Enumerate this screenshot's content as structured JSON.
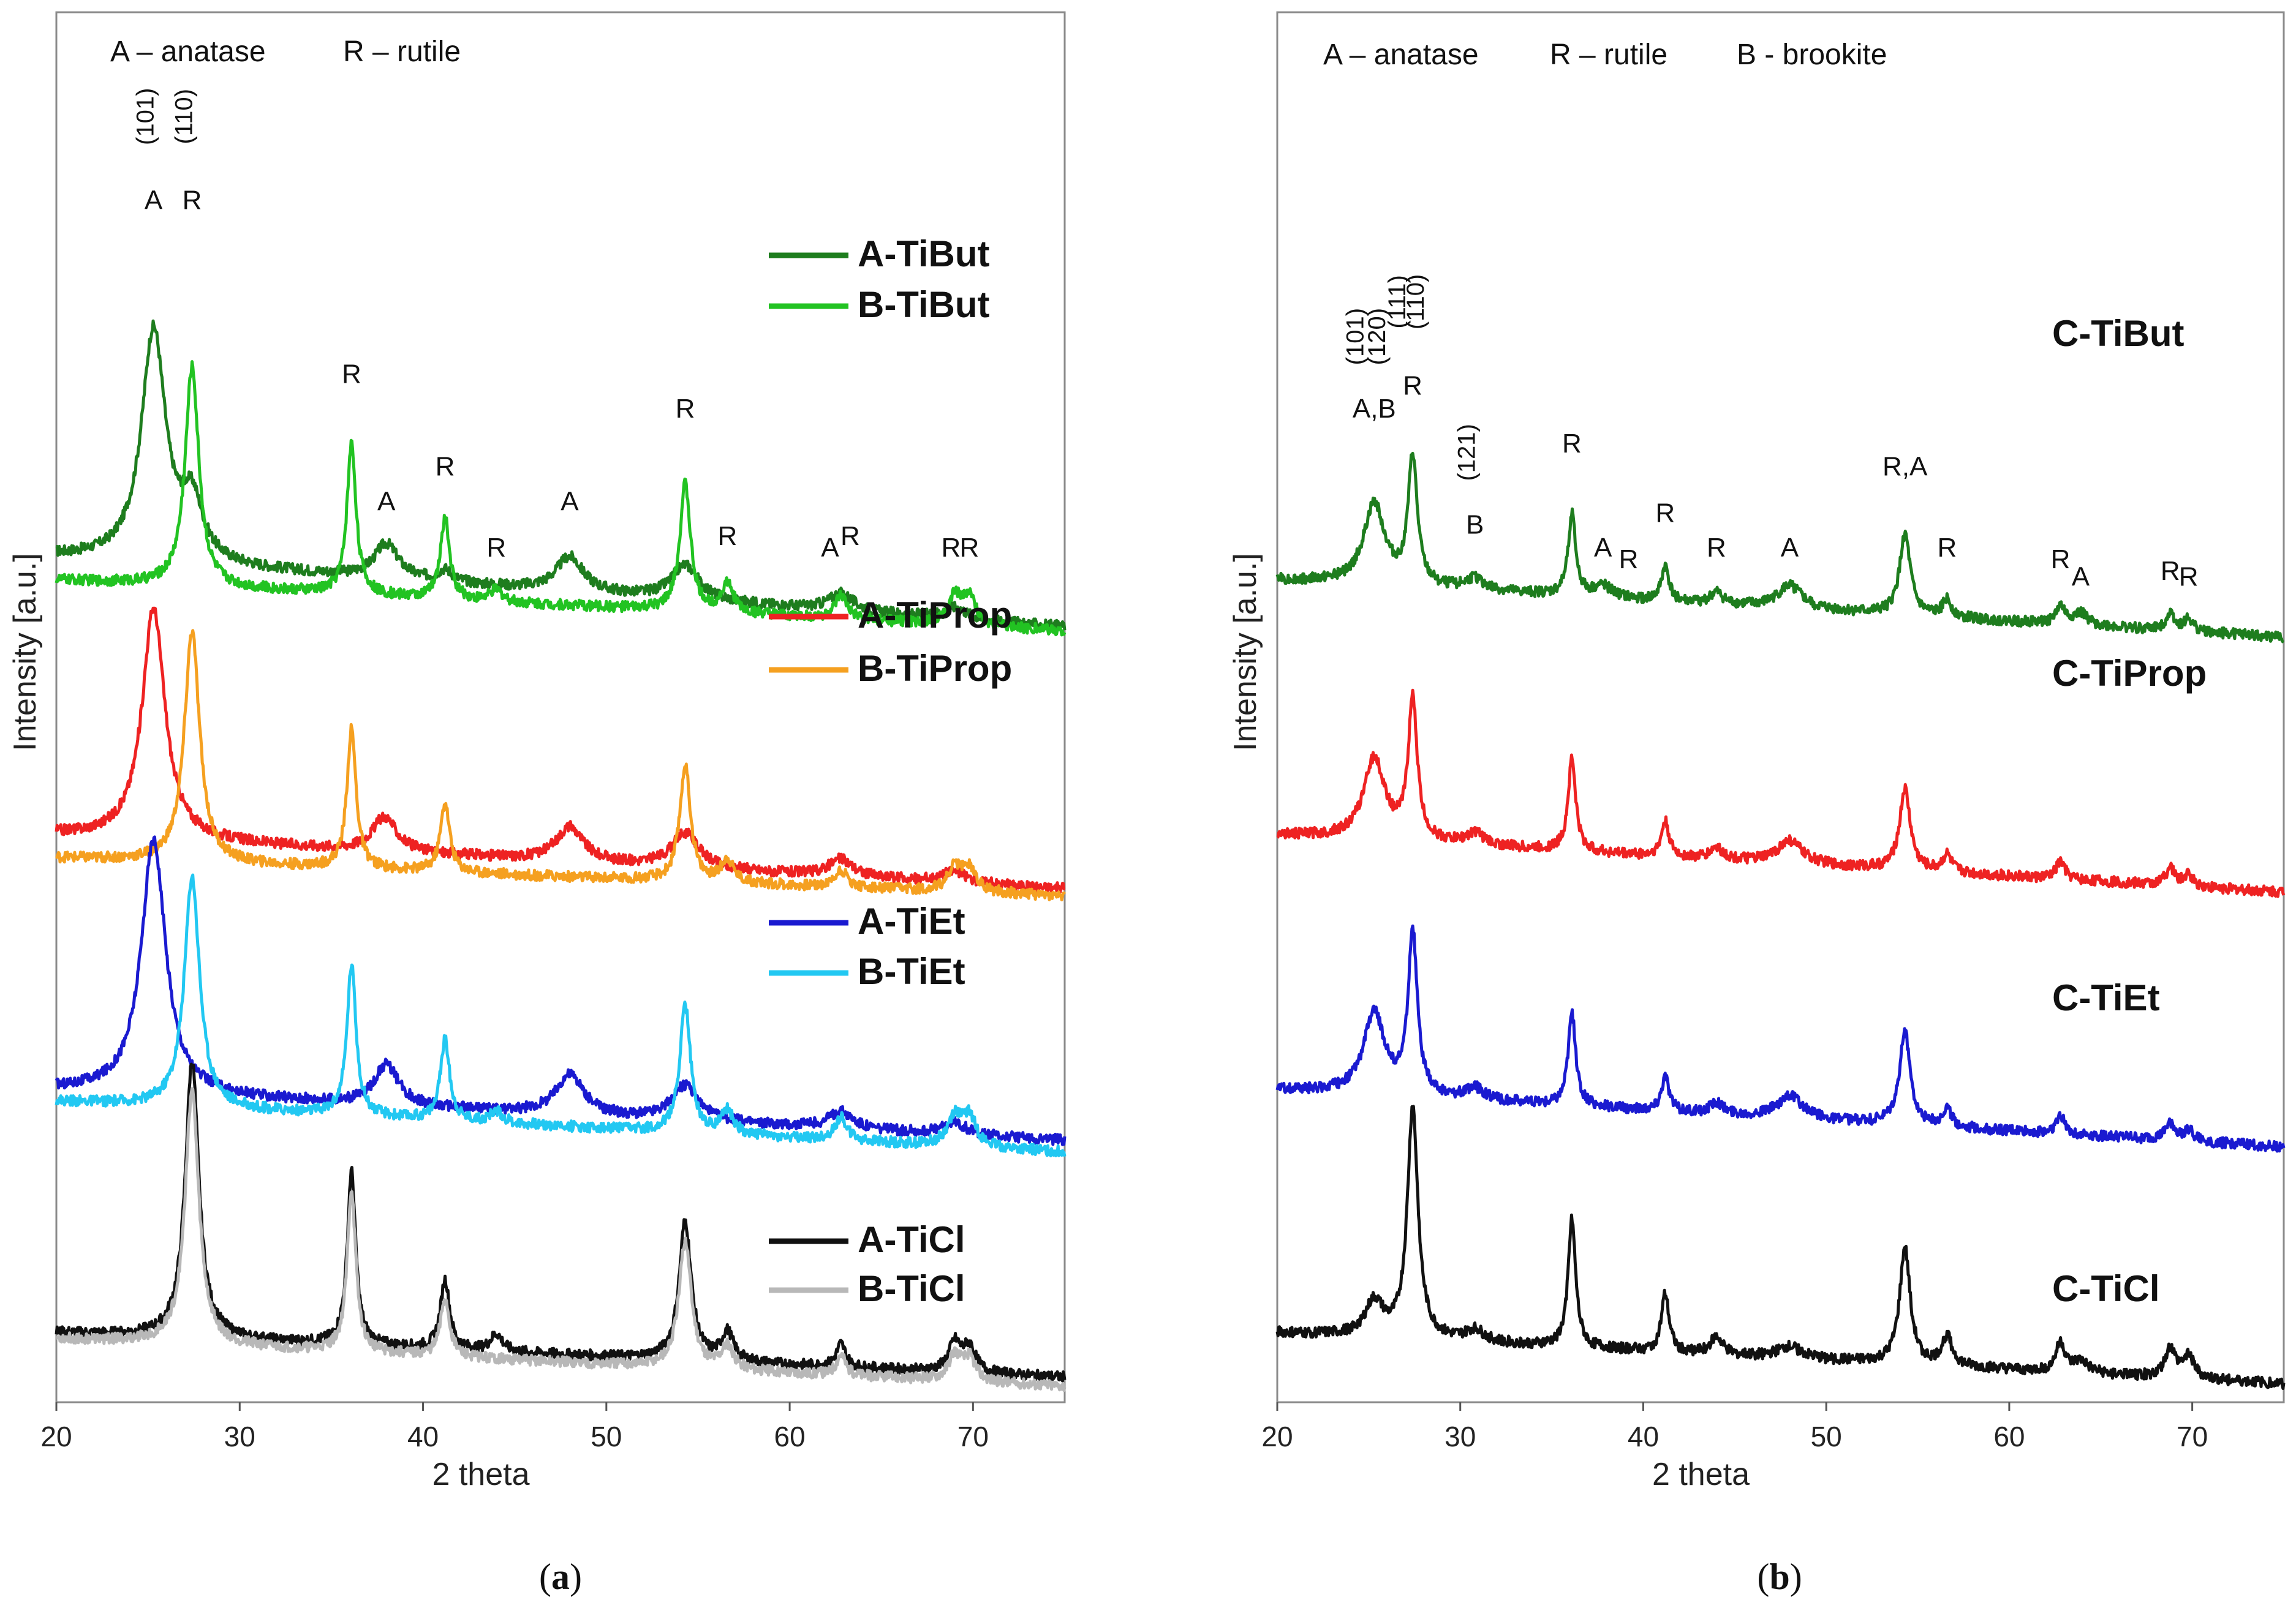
{
  "chart_data": [
    {
      "id": "a",
      "type": "line",
      "caption": "a",
      "xlabel": "2 theta",
      "ylabel": "Intensity [a.u.]",
      "xlim": [
        20,
        75
      ],
      "xticks": [
        20,
        30,
        40,
        50,
        60,
        70
      ],
      "phase_key": [
        "A – anatase",
        "R – rutile"
      ],
      "peak_labels": [
        {
          "text": "A",
          "x": 25.3,
          "y": 103
        },
        {
          "text": "R",
          "x": 27.4,
          "y": 103
        },
        {
          "text": "R",
          "x": 36.1,
          "y": 88
        },
        {
          "text": "A",
          "x": 38.0,
          "y": 77
        },
        {
          "text": "R",
          "x": 41.2,
          "y": 80
        },
        {
          "text": "R",
          "x": 44.0,
          "y": 73
        },
        {
          "text": "A",
          "x": 48.0,
          "y": 77
        },
        {
          "text": "R",
          "x": 54.3,
          "y": 85
        },
        {
          "text": "R",
          "x": 56.6,
          "y": 74
        },
        {
          "text": "A",
          "x": 62.2,
          "y": 73
        },
        {
          "text": "R",
          "x": 63.3,
          "y": 74
        },
        {
          "text": "R",
          "x": 68.8,
          "y": 73
        },
        {
          "text": "R",
          "x": 69.8,
          "y": 73
        }
      ],
      "hkl_labels": [
        {
          "text": "(101)",
          "x": 25.3,
          "y": 111
        },
        {
          "text": "(110)",
          "x": 27.4,
          "y": 111
        }
      ],
      "series": [
        {
          "name": "A-TiBut",
          "color": "#1e7d1e",
          "offset": 65,
          "baseline": 8,
          "slope": 0.11,
          "peaks": [
            [
              25.3,
              20,
              0.8
            ],
            [
              27.4,
              5,
              0.7
            ],
            [
              38.0,
              3,
              0.8
            ],
            [
              41.2,
              1,
              0.5
            ],
            [
              48.0,
              3,
              0.9
            ],
            [
              54.3,
              3,
              0.9
            ],
            [
              62.8,
              1.5,
              0.8
            ],
            [
              69.0,
              1,
              0.8
            ]
          ]
        },
        {
          "name": "B-TiBut",
          "color": "#22c322",
          "offset": 65,
          "baseline": 6,
          "slope": 0.08,
          "peaks": [
            [
              27.4,
              19,
              0.45
            ],
            [
              36.1,
              13,
              0.3
            ],
            [
              41.2,
              7,
              0.3
            ],
            [
              44.0,
              1,
              0.4
            ],
            [
              54.3,
              11,
              0.35
            ],
            [
              56.6,
              2.5,
              0.4
            ],
            [
              62.8,
              2,
              0.4
            ],
            [
              69.0,
              2.5,
              0.4
            ],
            [
              69.8,
              2.5,
              0.4
            ]
          ]
        },
        {
          "name": "A-TiProp",
          "color": "#ee2222",
          "offset": 43,
          "baseline": 6,
          "slope": 0.085,
          "peaks": [
            [
              25.3,
              20,
              0.75
            ],
            [
              37.9,
              3,
              0.8
            ],
            [
              48.0,
              3,
              0.9
            ],
            [
              54.3,
              3,
              0.9
            ],
            [
              62.8,
              1.5,
              0.8
            ],
            [
              69.0,
              1,
              0.8
            ]
          ]
        },
        {
          "name": "B-TiProp",
          "color": "#f5a020",
          "offset": 43,
          "baseline": 4,
          "slope": 0.06,
          "peaks": [
            [
              27.4,
              20,
              0.5
            ],
            [
              36.1,
              12,
              0.3
            ],
            [
              41.2,
              6,
              0.3
            ],
            [
              54.3,
              10,
              0.35
            ],
            [
              56.6,
              2,
              0.4
            ],
            [
              62.8,
              1.5,
              0.4
            ],
            [
              69.0,
              2,
              0.45
            ],
            [
              69.8,
              2,
              0.45
            ]
          ]
        },
        {
          "name": "A-TiEt",
          "color": "#1a1ad0",
          "offset": 21,
          "baseline": 6,
          "slope": 0.08,
          "peaks": [
            [
              25.3,
              22,
              0.8
            ],
            [
              38.0,
              3.5,
              0.8
            ],
            [
              48.0,
              3.5,
              0.9
            ],
            [
              54.3,
              3,
              0.9
            ],
            [
              62.8,
              1.5,
              0.8
            ],
            [
              69.0,
              1,
              0.8
            ]
          ]
        },
        {
          "name": "B-TiEt",
          "color": "#22c8f2",
          "offset": 21,
          "baseline": 5,
          "slope": 0.08,
          "peaks": [
            [
              27.4,
              20,
              0.5
            ],
            [
              36.1,
              13,
              0.3
            ],
            [
              41.2,
              7,
              0.3
            ],
            [
              44.0,
              1,
              0.4
            ],
            [
              54.3,
              11,
              0.35
            ],
            [
              56.6,
              2,
              0.4
            ],
            [
              62.8,
              2,
              0.4
            ],
            [
              69.0,
              2.5,
              0.45
            ],
            [
              69.8,
              2.5,
              0.45
            ]
          ]
        },
        {
          "name": "A-TiCl",
          "color": "#111111",
          "offset": 1,
          "baseline": 5,
          "slope": 0.07,
          "peaks": [
            [
              27.4,
              24,
              0.45
            ],
            [
              36.1,
              15,
              0.28
            ],
            [
              41.2,
              6,
              0.3
            ],
            [
              44.0,
              1.5,
              0.4
            ],
            [
              54.3,
              12,
              0.4
            ],
            [
              56.6,
              2.5,
              0.4
            ],
            [
              62.8,
              2,
              0.3
            ],
            [
              69.0,
              2.5,
              0.4
            ],
            [
              69.8,
              2.2,
              0.4
            ]
          ]
        },
        {
          "name": "B-TiCl",
          "color": "#b8b8b8",
          "offset": 0.5,
          "baseline": 5,
          "slope": 0.075,
          "peaks": [
            [
              27.4,
              22,
              0.45
            ],
            [
              36.1,
              14,
              0.28
            ],
            [
              41.2,
              5,
              0.3
            ],
            [
              54.3,
              11,
              0.4
            ],
            [
              56.6,
              2,
              0.4
            ],
            [
              62.8,
              1.8,
              0.3
            ],
            [
              69.0,
              2.2,
              0.4
            ],
            [
              69.8,
              2,
              0.4
            ]
          ]
        }
      ]
    },
    {
      "id": "b",
      "type": "line",
      "caption": "b",
      "xlabel": "2 theta",
      "ylabel": "Intensity [a.u.]",
      "xlim": [
        20,
        75
      ],
      "xticks": [
        20,
        30,
        40,
        50,
        60,
        70
      ],
      "phase_key": [
        "A – anatase",
        "R – rutile",
        "B - brookite"
      ],
      "peak_labels": [
        {
          "text": "A,B",
          "x": 25.3,
          "y": 85
        },
        {
          "text": "R",
          "x": 27.4,
          "y": 87
        },
        {
          "text": "B",
          "x": 30.8,
          "y": 75
        },
        {
          "text": "R",
          "x": 36.1,
          "y": 82
        },
        {
          "text": "A",
          "x": 37.8,
          "y": 73
        },
        {
          "text": "R",
          "x": 39.2,
          "y": 72
        },
        {
          "text": "R",
          "x": 41.2,
          "y": 76
        },
        {
          "text": "R",
          "x": 44.0,
          "y": 73
        },
        {
          "text": "A",
          "x": 48.0,
          "y": 73
        },
        {
          "text": "R,A",
          "x": 54.3,
          "y": 80
        },
        {
          "text": "R",
          "x": 56.6,
          "y": 73
        },
        {
          "text": "R",
          "x": 62.8,
          "y": 72
        },
        {
          "text": "A",
          "x": 63.9,
          "y": 70.5
        },
        {
          "text": "R",
          "x": 68.8,
          "y": 71
        },
        {
          "text": "R",
          "x": 69.8,
          "y": 70.5
        }
      ],
      "hkl_labels": [
        {
          "text": "(101)",
          "x": 24.7,
          "y": 92
        },
        {
          "text": "(120)",
          "x": 25.9,
          "y": 92
        },
        {
          "text": "(111)",
          "x": 27.0,
          "y": 95
        },
        {
          "text": "(110)",
          "x": 28.0,
          "y": 95
        },
        {
          "text": "(121)",
          "x": 30.8,
          "y": 82
        }
      ],
      "series": [
        {
          "name": "C-TiBut",
          "color": "#1e7d1e",
          "offset": 65,
          "baseline": 6,
          "slope": 0.09,
          "peaks": [
            [
              25.3,
              7,
              0.7
            ],
            [
              27.4,
              11,
              0.3
            ],
            [
              30.8,
              1,
              0.6
            ],
            [
              36.1,
              7,
              0.25
            ],
            [
              37.8,
              1,
              0.6
            ],
            [
              41.2,
              3,
              0.25
            ],
            [
              44.0,
              1,
              0.4
            ],
            [
              48.0,
              2,
              0.8
            ],
            [
              54.3,
              7,
              0.35
            ],
            [
              56.6,
              1.5,
              0.3
            ],
            [
              62.8,
              1.5,
              0.3
            ],
            [
              63.9,
              1,
              0.5
            ],
            [
              68.8,
              1.5,
              0.3
            ],
            [
              69.8,
              1,
              0.3
            ]
          ]
        },
        {
          "name": "C-TiProp",
          "color": "#ee2222",
          "offset": 43,
          "baseline": 6,
          "slope": 0.09,
          "peaks": [
            [
              25.3,
              7,
              0.7
            ],
            [
              27.4,
              12,
              0.3
            ],
            [
              30.8,
              1,
              0.6
            ],
            [
              36.1,
              8,
              0.25
            ],
            [
              41.2,
              3,
              0.25
            ],
            [
              44.0,
              1,
              0.4
            ],
            [
              48.0,
              2,
              0.8
            ],
            [
              54.3,
              7,
              0.35
            ],
            [
              56.6,
              1.5,
              0.3
            ],
            [
              62.8,
              1.5,
              0.3
            ],
            [
              68.8,
              1.5,
              0.3
            ],
            [
              69.8,
              1,
              0.3
            ]
          ]
        },
        {
          "name": "C-TiEt",
          "color": "#1a1ad0",
          "offset": 21,
          "baseline": 6,
          "slope": 0.09,
          "peaks": [
            [
              25.3,
              7,
              0.7
            ],
            [
              27.4,
              14,
              0.3
            ],
            [
              30.8,
              1,
              0.6
            ],
            [
              36.1,
              8,
              0.25
            ],
            [
              41.2,
              3,
              0.25
            ],
            [
              44.0,
              1,
              0.4
            ],
            [
              48.0,
              2,
              0.8
            ],
            [
              54.3,
              8,
              0.35
            ],
            [
              56.6,
              1.5,
              0.3
            ],
            [
              62.8,
              1.5,
              0.3
            ],
            [
              68.8,
              1.5,
              0.3
            ],
            [
              69.8,
              1,
              0.3
            ]
          ]
        },
        {
          "name": "C-TiCl",
          "color": "#111111",
          "offset": 1,
          "baseline": 5,
          "slope": 0.08,
          "peaks": [
            [
              25.3,
              3,
              0.6
            ],
            [
              27.4,
              20,
              0.35
            ],
            [
              30.8,
              1,
              0.6
            ],
            [
              36.1,
              11,
              0.25
            ],
            [
              41.2,
              5,
              0.25
            ],
            [
              44.0,
              1.5,
              0.4
            ],
            [
              48.0,
              1,
              0.8
            ],
            [
              54.3,
              10,
              0.35
            ],
            [
              56.6,
              2.5,
              0.35
            ],
            [
              62.8,
              2.5,
              0.3
            ],
            [
              63.9,
              1,
              0.5
            ],
            [
              68.8,
              2.5,
              0.35
            ],
            [
              69.8,
              2,
              0.35
            ]
          ]
        }
      ]
    }
  ]
}
